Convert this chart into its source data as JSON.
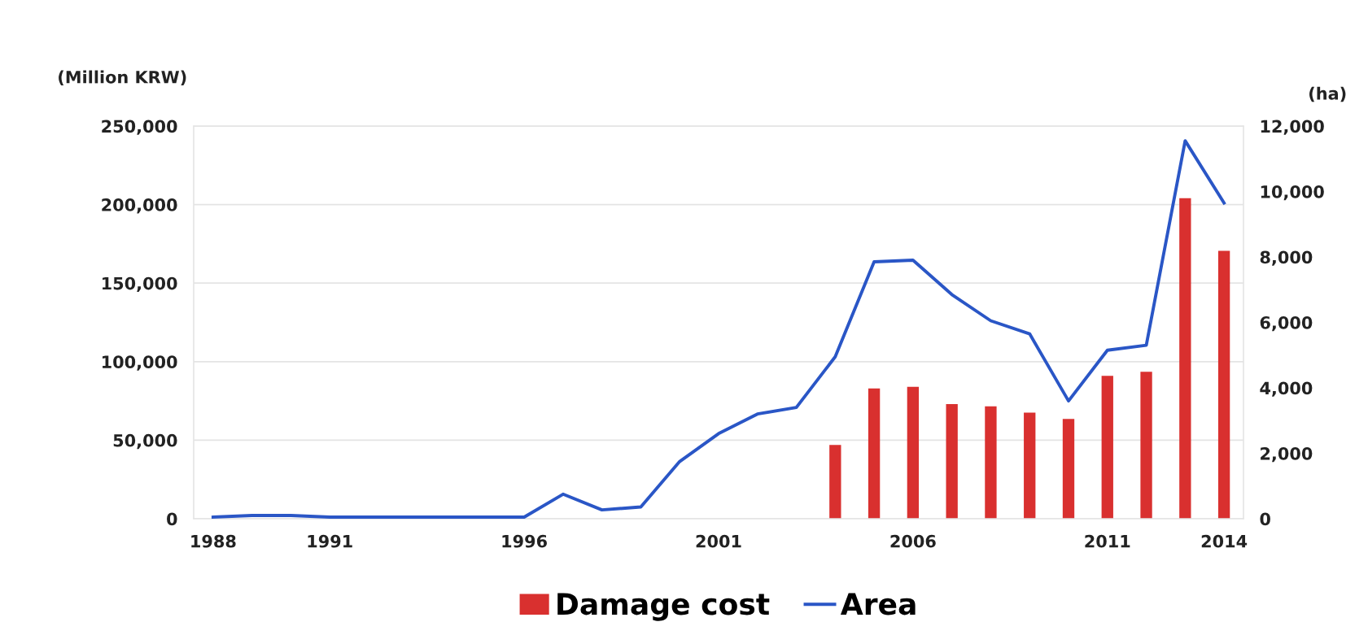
{
  "chart_data": {
    "type": "bar",
    "categories": [
      "1988",
      null,
      null,
      "1991",
      null,
      null,
      null,
      null,
      "1996",
      null,
      null,
      null,
      null,
      "2001",
      null,
      null,
      null,
      null,
      "2006",
      null,
      null,
      null,
      null,
      "2011",
      null,
      null,
      "2014"
    ],
    "series": [
      {
        "name": "Damage cost",
        "color": "#d9302f",
        "values": [
          null,
          null,
          null,
          null,
          null,
          null,
          null,
          null,
          null,
          null,
          null,
          null,
          null,
          null,
          null,
          null,
          47000,
          83000,
          84000,
          73000,
          71500,
          67500,
          63500,
          91000,
          93500,
          204000,
          170500
        ]
      },
      {
        "name": "Area",
        "type": "line",
        "axis": "y2",
        "color": "#2a56c6",
        "values": [
          50,
          100,
          100,
          50,
          50,
          50,
          50,
          50,
          50,
          750,
          270,
          360,
          1750,
          2600,
          3200,
          3400,
          4950,
          7850,
          7900,
          6850,
          6050,
          5650,
          3600,
          5150,
          5300,
          11550,
          9650
        ]
      }
    ],
    "ylabel": "(Million KRW)",
    "y2label": "(ha)",
    "ylim": [
      0,
      250000
    ],
    "yticks": [
      {
        "value": 0,
        "label": "0"
      },
      {
        "value": 50000,
        "label": "50,000"
      },
      {
        "value": 100000,
        "label": "100,000"
      },
      {
        "value": 150000,
        "label": "150,000"
      },
      {
        "value": 200000,
        "label": "200,000"
      },
      {
        "value": 250000,
        "label": "250,000"
      }
    ],
    "y2lim": [
      0,
      12000
    ],
    "y2ticks": [
      {
        "value": 0,
        "label": "0"
      },
      {
        "value": 2000,
        "label": "2,000"
      },
      {
        "value": 4000,
        "label": "4,000"
      },
      {
        "value": 6000,
        "label": "6,000"
      },
      {
        "value": 8000,
        "label": "8,000"
      },
      {
        "value": 10000,
        "label": "10,000"
      },
      {
        "value": 12000,
        "label": "12,000"
      }
    ],
    "grid": "y",
    "legend": "bottom"
  }
}
